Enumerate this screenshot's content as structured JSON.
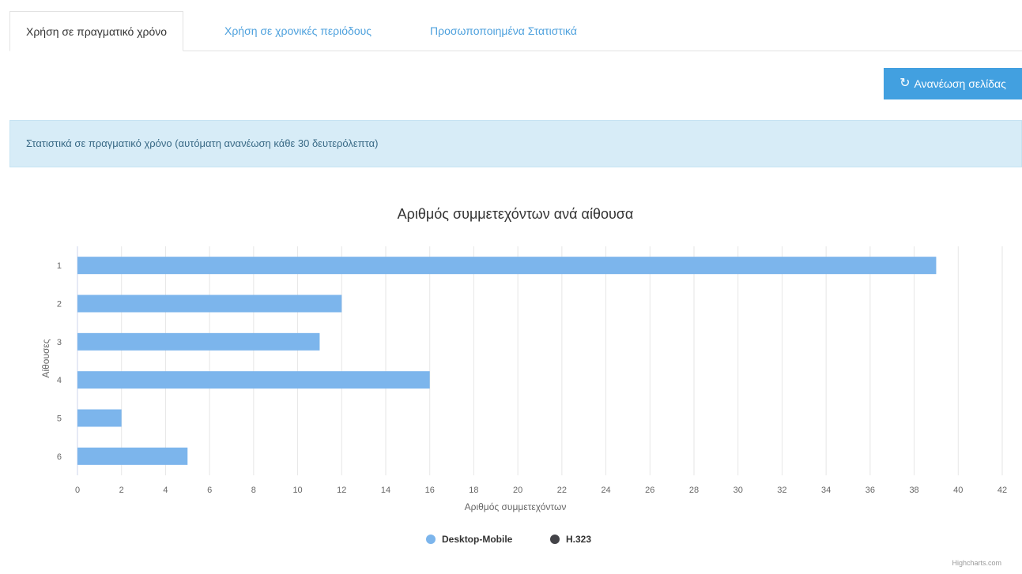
{
  "tabs": [
    {
      "label": "Χρήση σε πραγματικό χρόνο",
      "active": true
    },
    {
      "label": "Χρήση σε χρονικές περιόδους",
      "active": false
    },
    {
      "label": "Προσωποποιημένα Στατιστικά",
      "active": false
    }
  ],
  "toolbar": {
    "refresh_icon": "refresh-icon",
    "refresh_label": "Ανανέωση σελίδας"
  },
  "info": {
    "text": "Στατιστικά σε πραγματικό χρόνο (αυτόματη ανανέωση κάθε 30 δευτερόλεπτα)"
  },
  "colors": {
    "accent": "#42a0e0",
    "info_bg": "#d7ecf7",
    "bar": "#7cb5ec",
    "series2": "#434348"
  },
  "chart_data": {
    "type": "bar",
    "orientation": "horizontal",
    "title": "Αριθμός συμμετεχόντων ανά αίθουσα",
    "xlabel": "Αριθμός συμμετεχόντων",
    "ylabel": "Αίθουσες",
    "categories": [
      "1",
      "2",
      "3",
      "4",
      "5",
      "6"
    ],
    "series": [
      {
        "name": "Desktop-Mobile",
        "color": "#7cb5ec",
        "values": [
          39,
          12,
          11,
          16,
          2,
          5
        ]
      },
      {
        "name": "H.323",
        "color": "#434348",
        "values": [
          0,
          0,
          0,
          0,
          0,
          0
        ]
      }
    ],
    "xlim": [
      0,
      42
    ],
    "xticks": [
      0,
      2,
      4,
      6,
      8,
      10,
      12,
      14,
      16,
      18,
      20,
      22,
      24,
      26,
      28,
      30,
      32,
      34,
      36,
      38,
      40,
      42
    ],
    "grid": true,
    "legend_position": "bottom",
    "credit": "Highcharts.com"
  }
}
